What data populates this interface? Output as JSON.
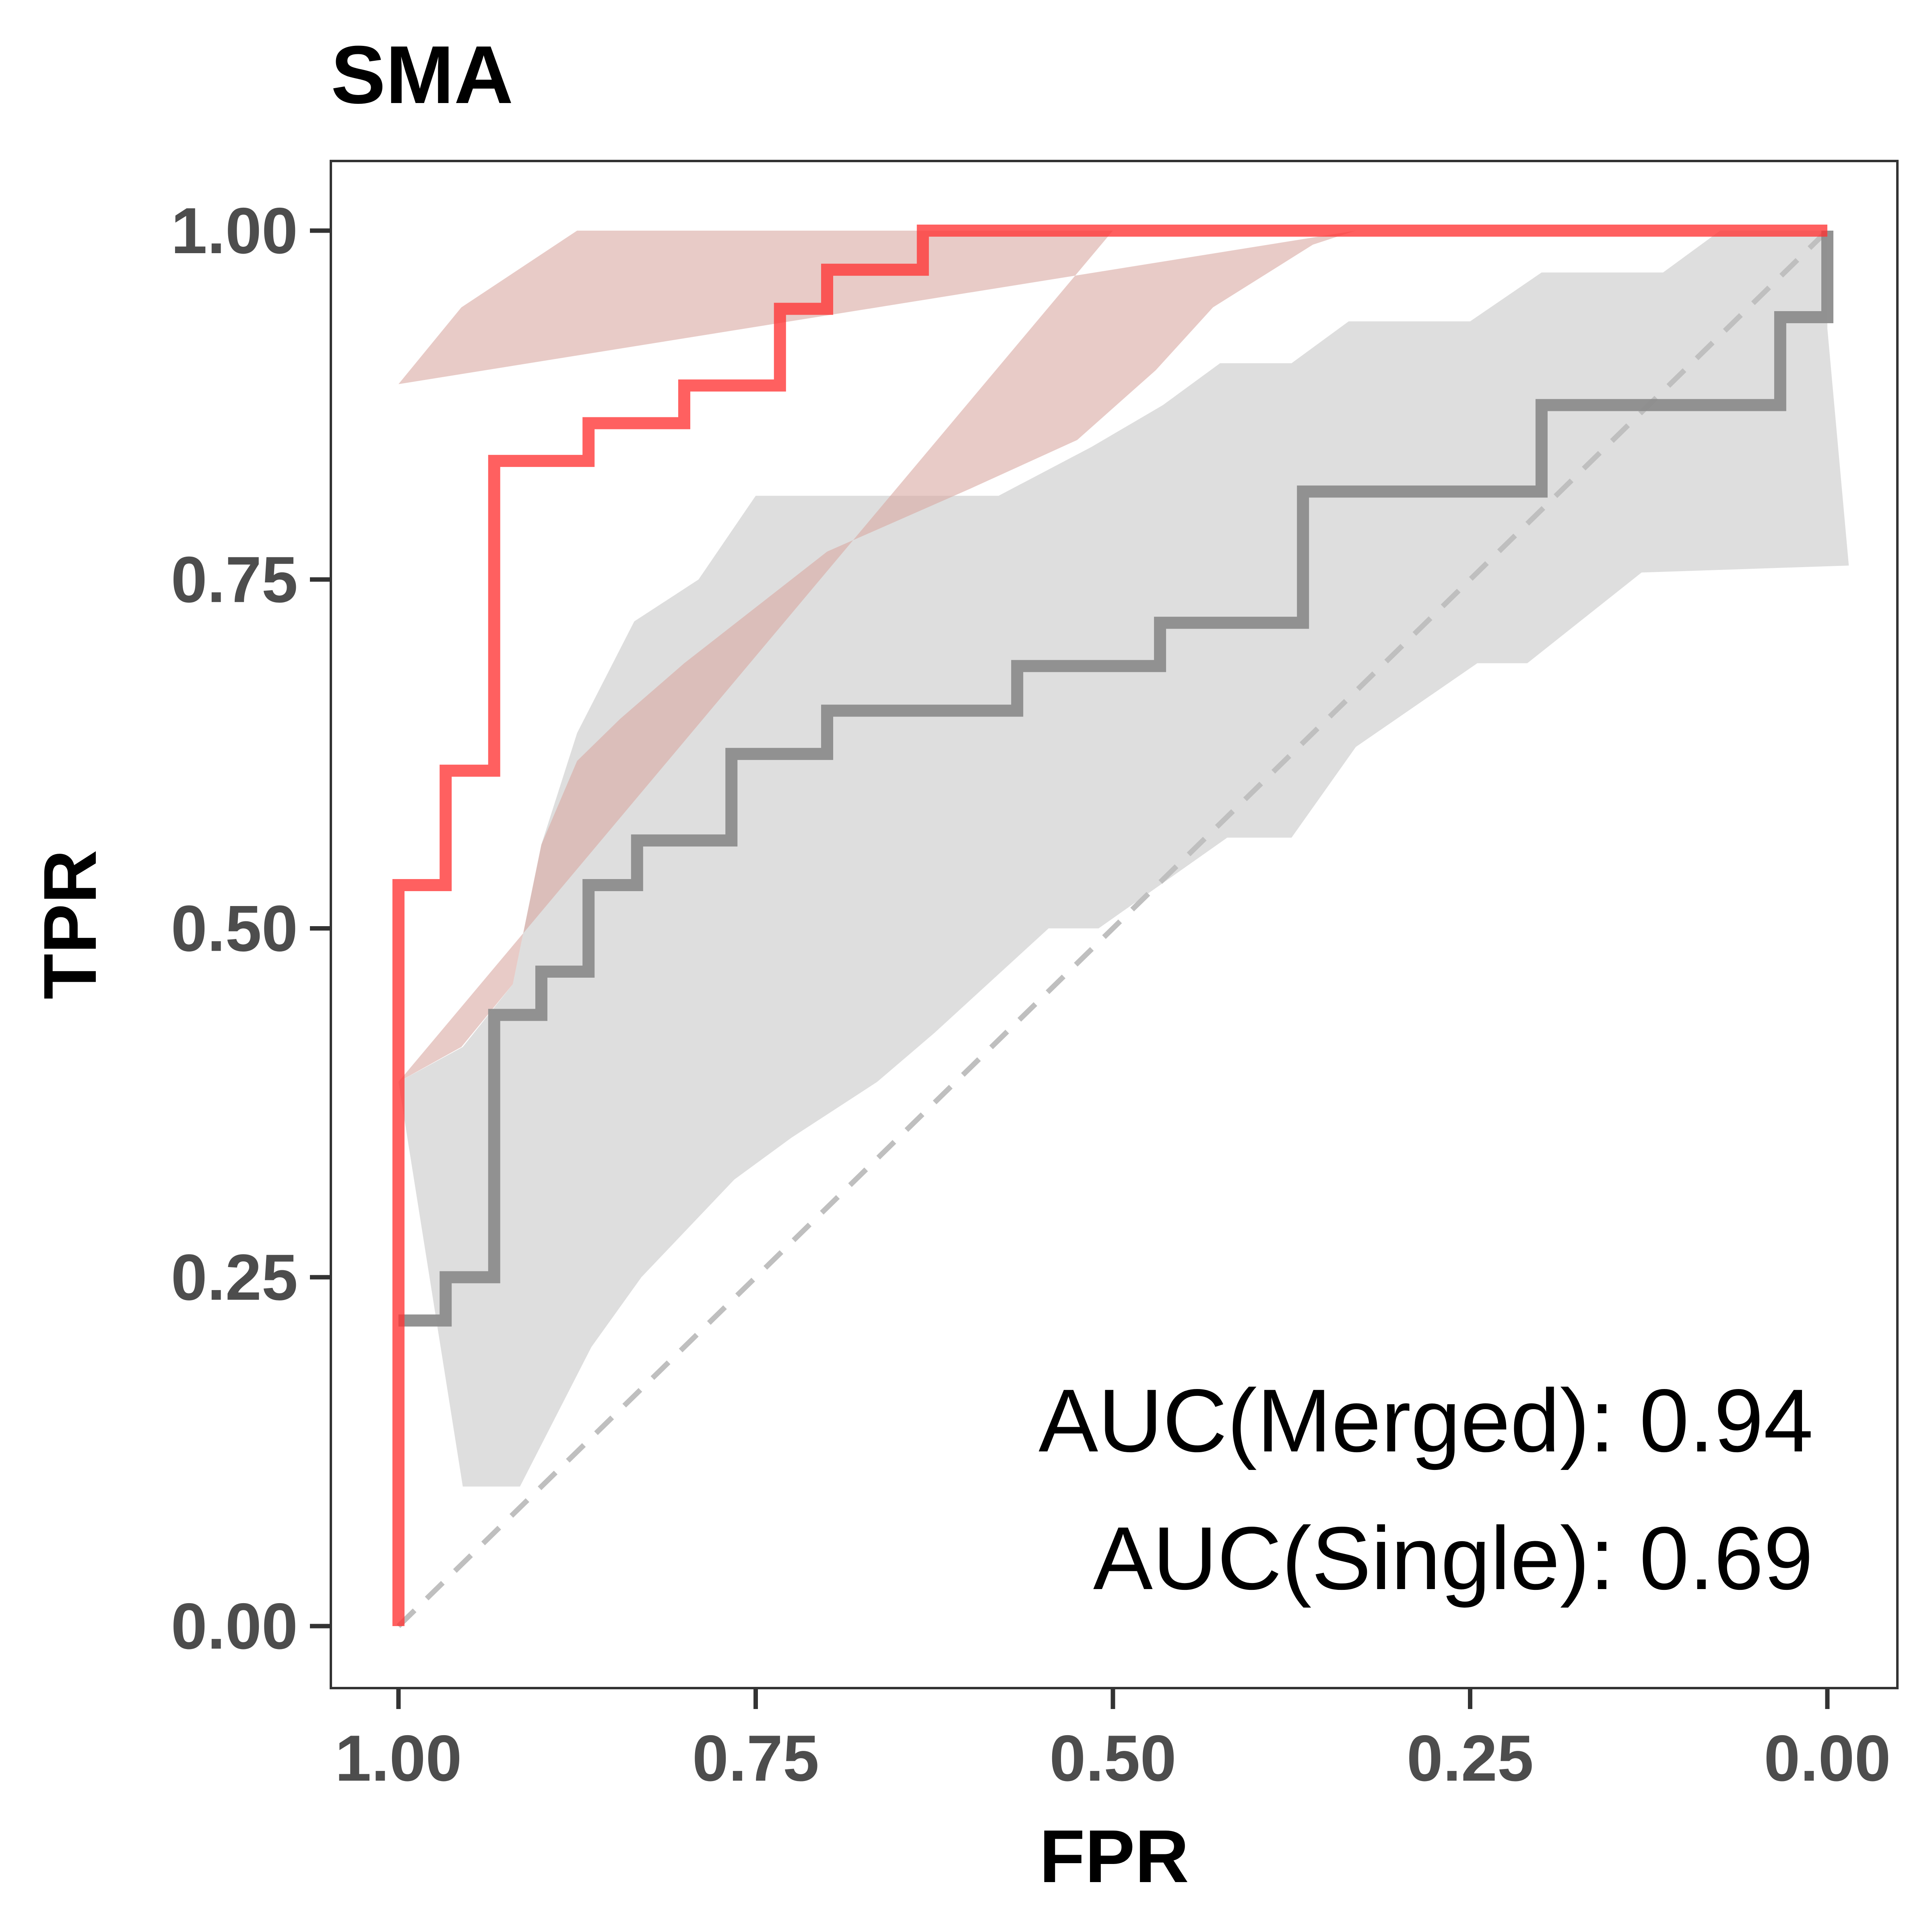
{
  "chart_data": {
    "type": "line",
    "title": "SMA",
    "xlabel": "FPR",
    "ylabel": "TPR",
    "xlim": [
      1.0,
      0.0
    ],
    "ylim": [
      0.0,
      1.0
    ],
    "x_reversed": true,
    "grid": false,
    "x_ticks": [
      "1.00",
      "0.75",
      "0.50",
      "0.25",
      "0.00"
    ],
    "y_ticks": [
      "0.00",
      "0.25",
      "0.50",
      "0.75",
      "1.00"
    ],
    "annotations": [
      "AUC(Merged): 0.94",
      "AUC(Single): 0.69"
    ],
    "reference_line": {
      "style": "dashed",
      "color": "#bfbfbf",
      "points": [
        [
          1.0,
          0.0
        ],
        [
          0.0,
          1.0
        ]
      ]
    },
    "series": [
      {
        "color": "#ff3333",
        "steps": [
          [
            1.0,
            0.0
          ],
          [
            1.0,
            0.531
          ],
          [
            0.967,
            0.531
          ],
          [
            0.967,
            0.613
          ],
          [
            0.933,
            0.613
          ],
          [
            0.933,
            0.835
          ],
          [
            0.867,
            0.835
          ],
          [
            0.867,
            0.862
          ],
          [
            0.8,
            0.862
          ],
          [
            0.8,
            0.889
          ],
          [
            0.733,
            0.889
          ],
          [
            0.733,
            0.944
          ],
          [
            0.7,
            0.944
          ],
          [
            0.7,
            0.972
          ],
          [
            0.633,
            0.972
          ],
          [
            0.633,
            1.0
          ],
          [
            0.0,
            1.0
          ]
        ],
        "band_upper": [
          [
            1.0,
            0.89
          ],
          [
            0.956,
            0.945
          ],
          [
            0.875,
            1.0
          ],
          [
            0.5,
            1.0
          ]
        ],
        "band_lower": [
          [
            1.0,
            0.39
          ],
          [
            0.956,
            0.415
          ],
          [
            0.92,
            0.46
          ],
          [
            0.9,
            0.56
          ],
          [
            0.875,
            0.62
          ],
          [
            0.845,
            0.65
          ],
          [
            0.8,
            0.69
          ],
          [
            0.7,
            0.77
          ],
          [
            0.6,
            0.815
          ],
          [
            0.525,
            0.85
          ],
          [
            0.47,
            0.9
          ],
          [
            0.43,
            0.945
          ],
          [
            0.36,
            0.99
          ],
          [
            0.33,
            1.0
          ]
        ],
        "band_color": "#d8a9a1"
      },
      {
        "color": "#8c8c8c",
        "steps": [
          [
            1.0,
            0.219
          ],
          [
            0.967,
            0.219
          ],
          [
            0.967,
            0.25
          ],
          [
            0.933,
            0.25
          ],
          [
            0.933,
            0.438
          ],
          [
            0.9,
            0.438
          ],
          [
            0.9,
            0.469
          ],
          [
            0.867,
            0.469
          ],
          [
            0.867,
            0.531
          ],
          [
            0.833,
            0.531
          ],
          [
            0.833,
            0.563
          ],
          [
            0.767,
            0.563
          ],
          [
            0.767,
            0.625
          ],
          [
            0.7,
            0.625
          ],
          [
            0.7,
            0.656
          ],
          [
            0.567,
            0.656
          ],
          [
            0.567,
            0.688
          ],
          [
            0.467,
            0.688
          ],
          [
            0.467,
            0.719
          ],
          [
            0.367,
            0.719
          ],
          [
            0.367,
            0.813
          ],
          [
            0.2,
            0.813
          ],
          [
            0.2,
            0.875
          ],
          [
            0.033,
            0.875
          ],
          [
            0.033,
            0.938
          ],
          [
            0.0,
            0.938
          ],
          [
            0.0,
            1.0
          ]
        ],
        "band_upper": [
          [
            1.0,
            0.39
          ],
          [
            0.955,
            0.415
          ],
          [
            0.92,
            0.46
          ],
          [
            0.9,
            0.56
          ],
          [
            0.875,
            0.64
          ],
          [
            0.835,
            0.72
          ],
          [
            0.79,
            0.75
          ],
          [
            0.75,
            0.81
          ],
          [
            0.58,
            0.81
          ],
          [
            0.515,
            0.845
          ],
          [
            0.465,
            0.875
          ],
          [
            0.425,
            0.905
          ],
          [
            0.375,
            0.905
          ],
          [
            0.335,
            0.935
          ],
          [
            0.25,
            0.935
          ],
          [
            0.2,
            0.97
          ],
          [
            0.115,
            0.97
          ],
          [
            0.075,
            1.0
          ],
          [
            0.0,
            1.0
          ]
        ],
        "band_lower": [
          [
            0.0,
            0.93
          ],
          [
            -0.015,
            0.76
          ],
          [
            0.13,
            0.755
          ],
          [
            0.21,
            0.69
          ],
          [
            0.245,
            0.69
          ],
          [
            0.33,
            0.63
          ],
          [
            0.375,
            0.565
          ],
          [
            0.42,
            0.565
          ],
          [
            0.51,
            0.5
          ],
          [
            0.545,
            0.5
          ],
          [
            0.625,
            0.425
          ],
          [
            0.665,
            0.39
          ],
          [
            0.725,
            0.35
          ],
          [
            0.765,
            0.32
          ],
          [
            0.83,
            0.25
          ],
          [
            0.865,
            0.2
          ],
          [
            0.915,
            0.1
          ],
          [
            0.955,
            0.1
          ]
        ],
        "band_color": "#dedede"
      }
    ]
  }
}
